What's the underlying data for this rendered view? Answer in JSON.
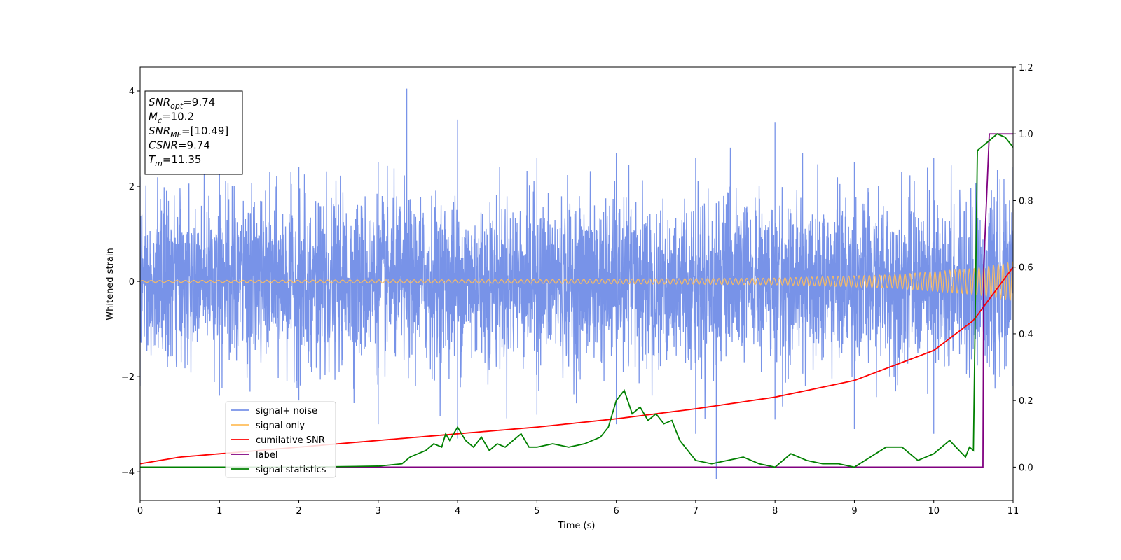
{
  "chart_data": {
    "type": "line",
    "xlabel": "Time (s)",
    "ylabel": "Whitened strain",
    "xlim": [
      0,
      11
    ],
    "ylim": [
      -4.6,
      4.5
    ],
    "y2lim": [
      -0.1,
      1.2
    ],
    "xticks": [
      "0",
      "1",
      "2",
      "3",
      "4",
      "5",
      "6",
      "7",
      "8",
      "9",
      "10",
      "11"
    ],
    "yticks": [
      "4",
      "2",
      "0",
      "−2",
      "−4"
    ],
    "y2ticks": [
      "1.2",
      "1.0",
      "0.8",
      "0.6",
      "0.4",
      "0.2",
      "0.0"
    ],
    "info_box": [
      {
        "name": "SNR",
        "sub": "opt",
        "value": "=9.74"
      },
      {
        "name": "M",
        "sub": "c",
        "value": "=10.2"
      },
      {
        "name": "SNR",
        "sub": "MF",
        "value": "=[10.49]"
      },
      {
        "name": "CSNR",
        "sub": "",
        "value": "=9.74"
      },
      {
        "name": "T",
        "sub": "m",
        "value": "=11.35"
      }
    ],
    "legend_position": "lower-left",
    "series": [
      {
        "name": "signal+ noise",
        "axis": "left",
        "color": "#7893e8",
        "description": "whitened strain noise band, std about 0.9, peaks up to about 4",
        "envelope_points": [
          [
            0,
            2.2
          ],
          [
            1,
            2.3
          ],
          [
            2,
            2.4
          ],
          [
            3,
            2.5
          ],
          [
            3.36,
            4.05
          ],
          [
            4,
            3.4
          ],
          [
            5,
            2.6
          ],
          [
            6,
            2.7
          ],
          [
            7,
            2.6
          ],
          [
            8,
            3.35
          ],
          [
            9,
            2.5
          ],
          [
            10,
            2.6
          ],
          [
            11,
            2.4
          ]
        ],
        "low_envelope_points": [
          [
            0,
            -2.2
          ],
          [
            1,
            -2.4
          ],
          [
            2,
            -2.5
          ],
          [
            3,
            -3.0
          ],
          [
            4,
            -3.3
          ],
          [
            5,
            -2.8
          ],
          [
            6,
            -3.0
          ],
          [
            7,
            -3.2
          ],
          [
            7.26,
            -4.15
          ],
          [
            8,
            -2.9
          ],
          [
            9,
            -3.1
          ],
          [
            10,
            -3.2
          ],
          [
            11,
            -2.2
          ]
        ]
      },
      {
        "name": "signal only",
        "axis": "left",
        "color": "#ffbe5c",
        "description": "chirp with amplitude growing from about 0.02 at t=0 to about 0.4 at t=11",
        "amplitude_points": [
          [
            0,
            0.02
          ],
          [
            5,
            0.04
          ],
          [
            8,
            0.07
          ],
          [
            9.5,
            0.14
          ],
          [
            10.5,
            0.27
          ],
          [
            11,
            0.4
          ]
        ]
      },
      {
        "name": "cumilative SNR",
        "axis": "right",
        "color": "#ff0000",
        "x": [
          0,
          0.5,
          1,
          2,
          3,
          4,
          5,
          6,
          7,
          8,
          9,
          10,
          10.5,
          11
        ],
        "y": [
          0.01,
          0.03,
          0.04,
          0.06,
          0.08,
          0.1,
          0.12,
          0.145,
          0.175,
          0.21,
          0.26,
          0.35,
          0.44,
          0.6
        ]
      },
      {
        "name": "label",
        "axis": "right",
        "color": "#800080",
        "x": [
          0,
          10.62,
          10.63,
          10.7,
          11
        ],
        "y": [
          0,
          0,
          0.6,
          1.0,
          1.0
        ]
      },
      {
        "name": "signal statistics",
        "axis": "right",
        "color": "#008000",
        "x": [
          0,
          1,
          2,
          3,
          3.3,
          3.4,
          3.5,
          3.6,
          3.7,
          3.8,
          3.85,
          3.9,
          4.0,
          4.1,
          4.2,
          4.3,
          4.4,
          4.5,
          4.6,
          4.7,
          4.8,
          4.9,
          5.0,
          5.2,
          5.4,
          5.6,
          5.8,
          5.9,
          6.0,
          6.1,
          6.2,
          6.3,
          6.4,
          6.5,
          6.6,
          6.7,
          6.8,
          6.9,
          7.0,
          7.2,
          7.4,
          7.6,
          7.8,
          8.0,
          8.2,
          8.4,
          8.6,
          8.8,
          9.0,
          9.2,
          9.4,
          9.6,
          9.8,
          10.0,
          10.2,
          10.4,
          10.45,
          10.5,
          10.55,
          10.6,
          10.7,
          10.8,
          10.9,
          11.0
        ],
        "y": [
          0,
          0,
          0,
          0.003,
          0.01,
          0.03,
          0.04,
          0.05,
          0.07,
          0.06,
          0.1,
          0.08,
          0.12,
          0.08,
          0.06,
          0.09,
          0.05,
          0.07,
          0.06,
          0.08,
          0.1,
          0.06,
          0.06,
          0.07,
          0.06,
          0.07,
          0.09,
          0.12,
          0.2,
          0.23,
          0.16,
          0.18,
          0.14,
          0.16,
          0.13,
          0.14,
          0.08,
          0.05,
          0.02,
          0.01,
          0.02,
          0.03,
          0.01,
          0.0,
          0.04,
          0.02,
          0.01,
          0.01,
          0.0,
          0.03,
          0.06,
          0.06,
          0.02,
          0.04,
          0.08,
          0.03,
          0.06,
          0.05,
          0.95,
          0.96,
          0.98,
          1.0,
          0.99,
          0.96
        ]
      }
    ]
  }
}
